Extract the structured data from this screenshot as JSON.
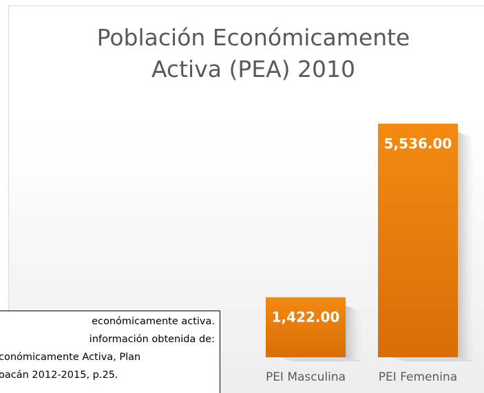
{
  "chart_data": {
    "type": "bar",
    "title": "Población Económicamente Activa (PEA) 2010",
    "categories": [
      "PEI Masculina",
      "PEI Femenina"
    ],
    "values": [
      1422,
      5536
    ],
    "value_labels": [
      "1,422.00",
      "5,536.00"
    ],
    "color": "#e8780a"
  },
  "text_box": {
    "lines": [
      "económicamente activa.",
      "información obtenida de:",
      "conómicamente Activa, Plan",
      "oacán 2012-2015, p.25."
    ]
  }
}
